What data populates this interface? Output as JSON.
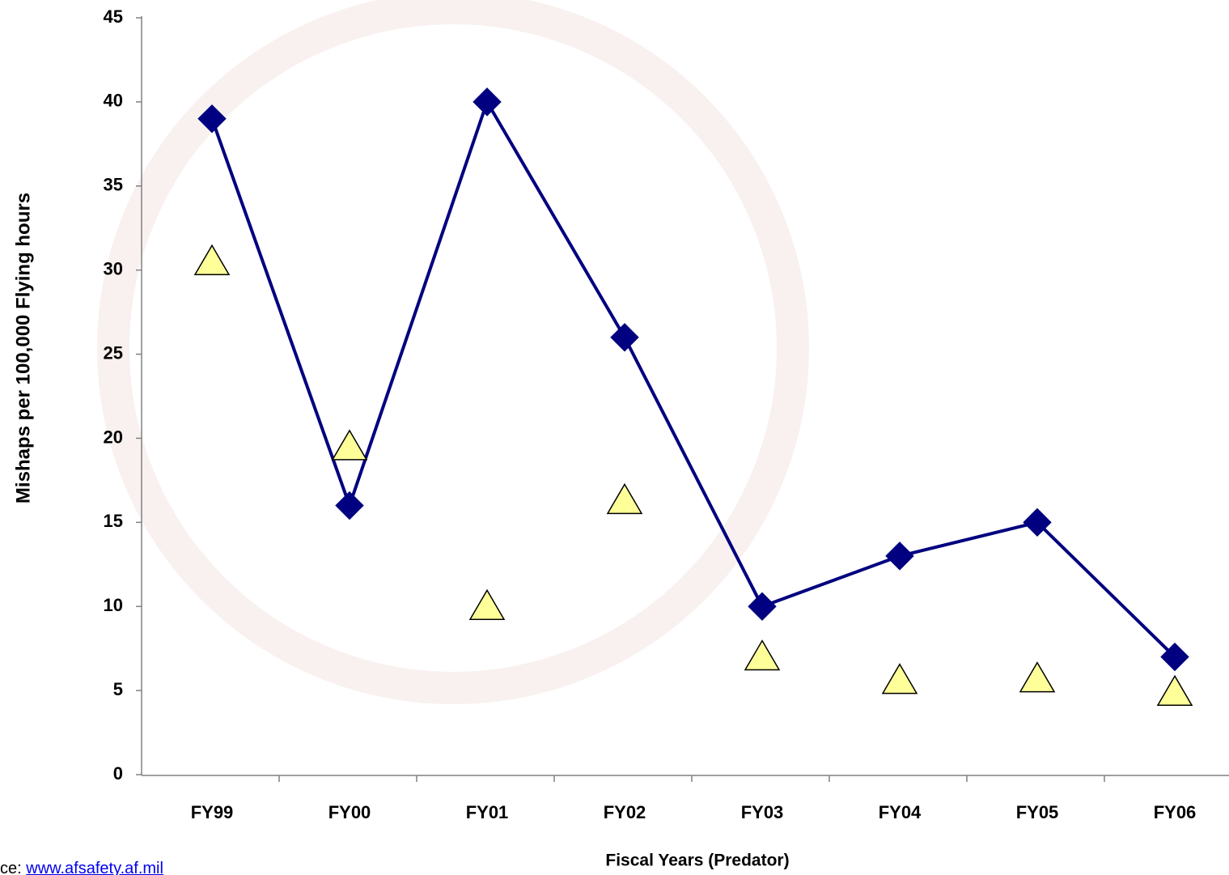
{
  "chart_data": {
    "type": "line",
    "x_label": "Fiscal Years (Predator)",
    "y_label": "Mishaps per 100,000 Flying hours",
    "categories": [
      "FY99",
      "FY00",
      "FY01",
      "FY02",
      "FY03",
      "FY04",
      "FY05",
      "FY06"
    ],
    "series": [
      {
        "color": "#000080",
        "marker": "diamond",
        "line": true,
        "values": [
          39,
          16,
          40,
          26,
          10,
          13,
          15,
          7
        ]
      },
      {
        "color": "#ffff99",
        "marker": "triangle",
        "line": false,
        "values": [
          30.5,
          19.5,
          10,
          16.3,
          7,
          5.6,
          5.7,
          4.9
        ]
      }
    ],
    "ylim": [
      0,
      45
    ],
    "yticks": [
      0,
      5,
      10,
      15,
      20,
      25,
      30,
      35,
      40,
      45
    ],
    "grid": false,
    "source_label": "ce:",
    "source_url": "www.afsafety.af.mil"
  }
}
